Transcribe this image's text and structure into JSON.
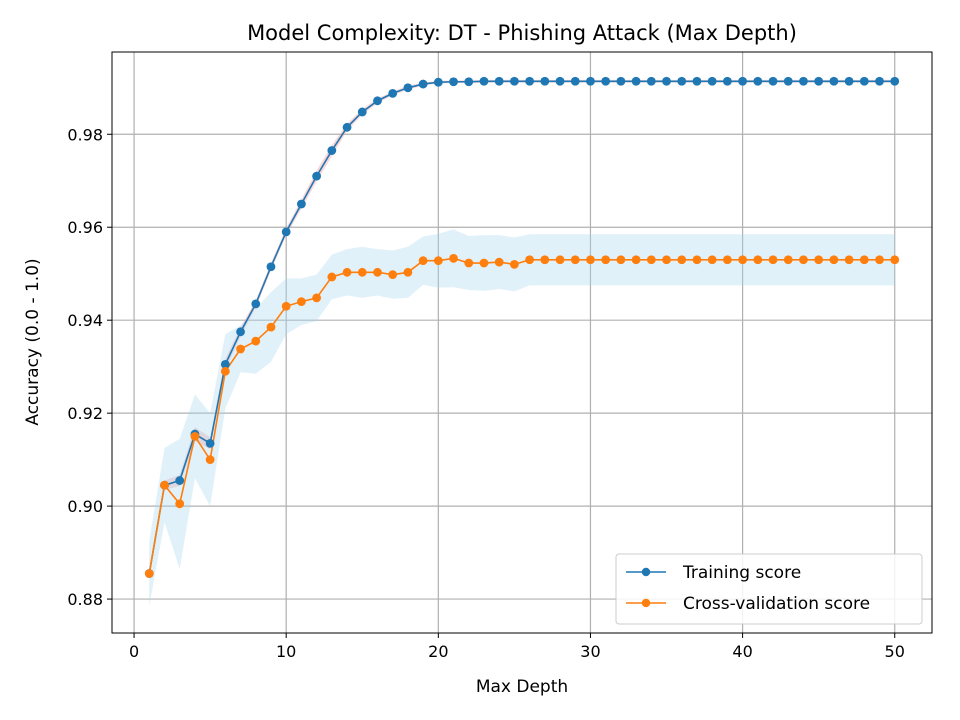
{
  "chart_data": {
    "type": "line",
    "title": "Model Complexity: DT - Phishing Attack (Max Depth)",
    "xlabel": "Max Depth",
    "ylabel": "Accuracy (0.0 - 1.0)",
    "xlim": [
      -1.45,
      52.45
    ],
    "ylim": [
      0.8727,
      0.9977
    ],
    "xticks": [
      0,
      10,
      20,
      30,
      40,
      50
    ],
    "xtick_labels": [
      "0",
      "10",
      "20",
      "30",
      "40",
      "50"
    ],
    "yticks": [
      0.88,
      0.9,
      0.92,
      0.94,
      0.96,
      0.98
    ],
    "ytick_labels": [
      "0.88",
      "0.90",
      "0.92",
      "0.94",
      "0.96",
      "0.98"
    ],
    "grid": true,
    "legend_position": "lower-right",
    "x": [
      1,
      2,
      3,
      4,
      5,
      6,
      7,
      8,
      9,
      10,
      11,
      12,
      13,
      14,
      15,
      16,
      17,
      18,
      19,
      20,
      21,
      22,
      23,
      24,
      25,
      26,
      27,
      28,
      29,
      30,
      31,
      32,
      33,
      34,
      35,
      36,
      37,
      38,
      39,
      40,
      41,
      42,
      43,
      44,
      45,
      46,
      47,
      48,
      49,
      50
    ],
    "series": [
      {
        "name": "Training score",
        "color": "#1f77b4",
        "band_color": "#f4a6a6",
        "values": [
          0.8855,
          0.9045,
          0.9055,
          0.9155,
          0.9135,
          0.9305,
          0.9375,
          0.9435,
          0.9515,
          0.959,
          0.965,
          0.971,
          0.9765,
          0.9815,
          0.9848,
          0.9872,
          0.9888,
          0.99,
          0.9908,
          0.9912,
          0.9913,
          0.9913,
          0.9914,
          0.9914,
          0.9914,
          0.9914,
          0.9914,
          0.9914,
          0.9914,
          0.9914,
          0.9914,
          0.9914,
          0.9914,
          0.9914,
          0.9914,
          0.9914,
          0.9914,
          0.9914,
          0.9914,
          0.9914,
          0.9914,
          0.9914,
          0.9914,
          0.9914,
          0.9914,
          0.9914,
          0.9914,
          0.9914,
          0.9914,
          0.9914
        ],
        "std": [
          0.0005,
          0.001,
          0.0012,
          0.0015,
          0.0013,
          0.0012,
          0.001,
          0.0008,
          0.0008,
          0.0008,
          0.001,
          0.0012,
          0.0012,
          0.0008,
          0.0006,
          0.0005,
          0.0004,
          0.0004,
          0.0003,
          0.0003,
          0.0003,
          0.0003,
          0.0003,
          0.0003,
          0.0003,
          0.0003,
          0.0003,
          0.0003,
          0.0003,
          0.0003,
          0.0003,
          0.0003,
          0.0003,
          0.0003,
          0.0003,
          0.0003,
          0.0003,
          0.0003,
          0.0003,
          0.0003,
          0.0003,
          0.0003,
          0.0003,
          0.0003,
          0.0003,
          0.0003,
          0.0003,
          0.0003,
          0.0003,
          0.0003
        ]
      },
      {
        "name": "Cross-validation score",
        "color": "#ff7f0e",
        "band_color": "#a8d8ef",
        "values": [
          0.8855,
          0.9045,
          0.9005,
          0.915,
          0.91,
          0.929,
          0.9338,
          0.9355,
          0.9385,
          0.943,
          0.944,
          0.9448,
          0.9493,
          0.9503,
          0.9503,
          0.9503,
          0.9498,
          0.9503,
          0.9528,
          0.9528,
          0.9533,
          0.9523,
          0.9523,
          0.9525,
          0.952,
          0.953,
          0.953,
          0.953,
          0.953,
          0.953,
          0.953,
          0.953,
          0.953,
          0.953,
          0.953,
          0.953,
          0.953,
          0.953,
          0.953,
          0.953,
          0.953,
          0.953,
          0.953,
          0.953,
          0.953,
          0.953,
          0.953,
          0.953,
          0.953,
          0.953
        ],
        "std": [
          0.007,
          0.008,
          0.014,
          0.009,
          0.01,
          0.008,
          0.005,
          0.007,
          0.0075,
          0.006,
          0.005,
          0.005,
          0.0048,
          0.005,
          0.0055,
          0.005,
          0.0052,
          0.0055,
          0.0052,
          0.0058,
          0.0062,
          0.0058,
          0.006,
          0.0058,
          0.0058,
          0.0055,
          0.0055,
          0.0055,
          0.0055,
          0.0055,
          0.0055,
          0.0055,
          0.0055,
          0.0055,
          0.0055,
          0.0055,
          0.0055,
          0.0055,
          0.0055,
          0.0055,
          0.0055,
          0.0055,
          0.0055,
          0.0055,
          0.0055,
          0.0055,
          0.0055,
          0.0055,
          0.0055,
          0.0055
        ]
      }
    ]
  }
}
